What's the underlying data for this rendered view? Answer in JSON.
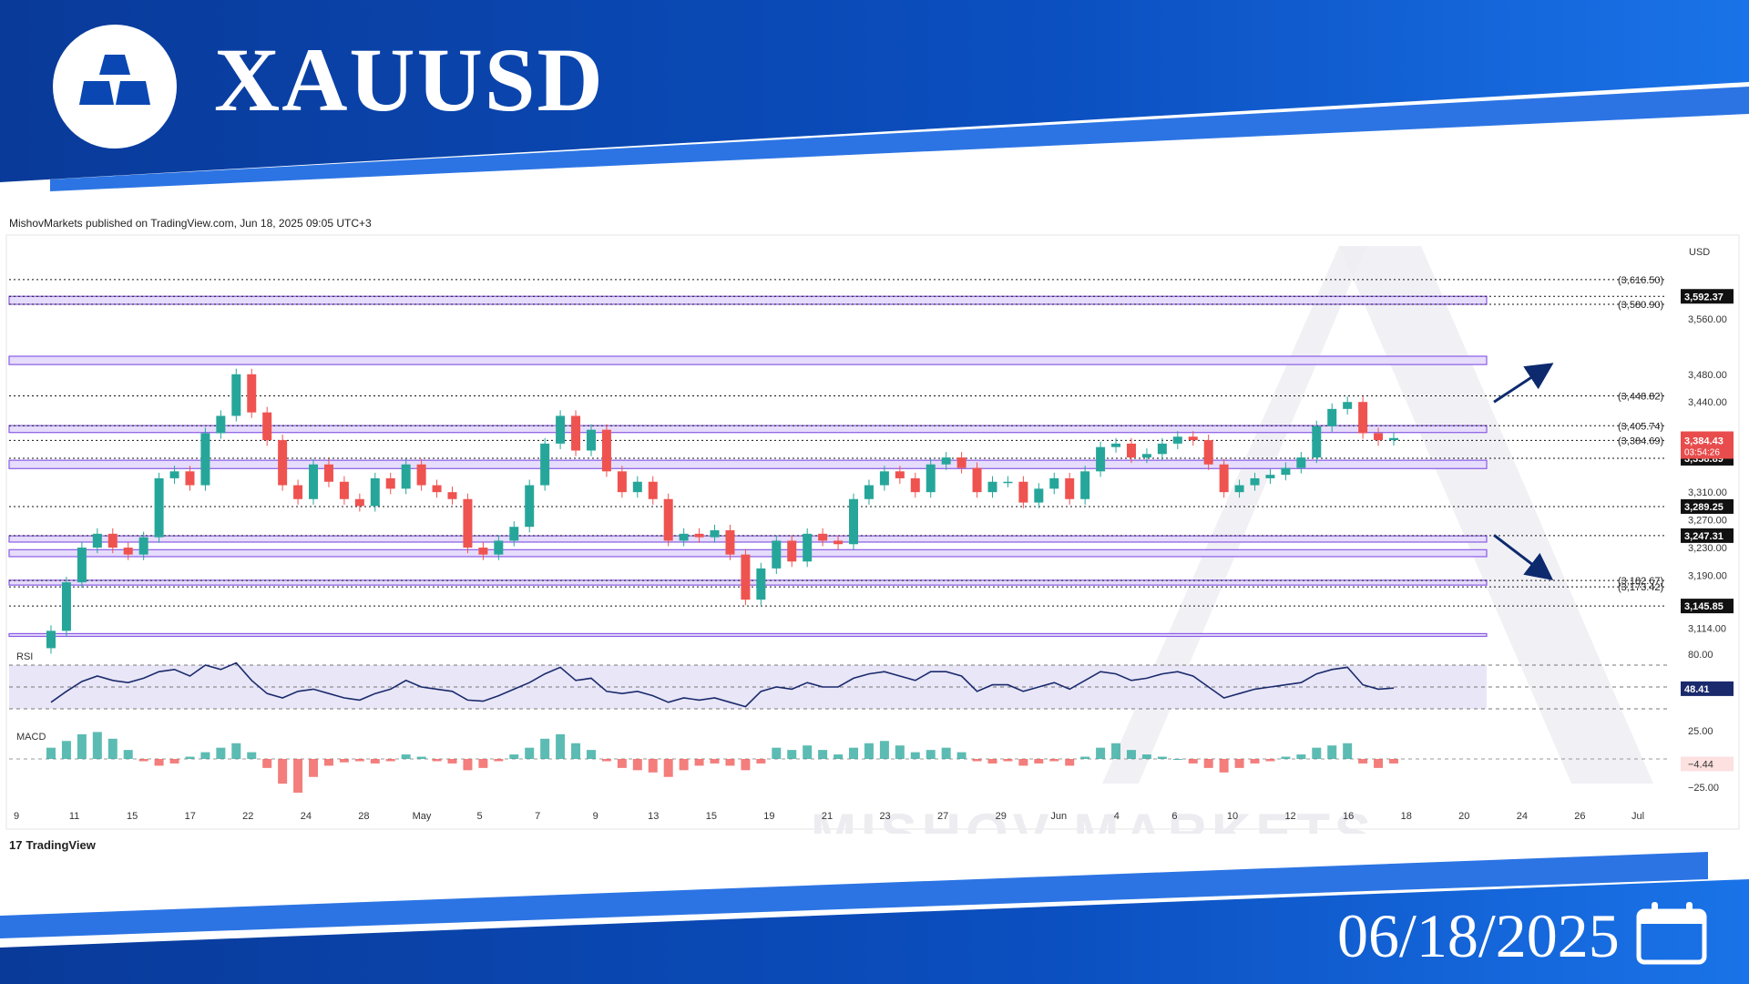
{
  "header": {
    "title": "XAUUSD",
    "published": "MishovMarkets published on TradingView.com, Jun 18, 2025 09:05 UTC+3",
    "brand_color": "#0a47b3"
  },
  "footer": {
    "date": "06/18/2025",
    "tradingview_label": "TradingView",
    "watermark": "MISHOV MARKETS"
  },
  "chart_data": {
    "type": "candlestick",
    "symbol": "XAUUSD",
    "currency_label": "USD",
    "ylim": [
      3100,
      3640
    ],
    "y_ticks": [
      3114.0,
      3190.0,
      3230.0,
      3270.0,
      3310.0,
      3440.0,
      3480.0,
      3560.0
    ],
    "x_ticks": [
      "9",
      "11",
      "15",
      "17",
      "22",
      "24",
      "28",
      "May",
      "5",
      "7",
      "9",
      "13",
      "15",
      "19",
      "21",
      "23",
      "27",
      "29",
      "Jun",
      "4",
      "6",
      "10",
      "12",
      "16",
      "18",
      "20",
      "24",
      "26",
      "Jul"
    ],
    "dotted_levels": [
      {
        "value": 3616.5,
        "label": "(3,616.50)"
      },
      {
        "value": 3592.37,
        "label": "3,592.37"
      },
      {
        "value": 3580.9,
        "label": "(3,580.90)"
      },
      {
        "value": 3448.82,
        "label": "(3,448.82)"
      },
      {
        "value": 3405.74,
        "label": "(3,405.74)"
      },
      {
        "value": 3384.69,
        "label": "(3,384.69)"
      },
      {
        "value": 3358.89,
        "label": "3,358.89"
      },
      {
        "value": 3289.25,
        "label": "3,289.25"
      },
      {
        "value": 3247.31,
        "label": "3,247.31"
      },
      {
        "value": 3182.67,
        "label": "(3,182.67)"
      },
      {
        "value": 3173.42,
        "label": "(3,173.42)"
      },
      {
        "value": 3145.85,
        "label": "3,145.85"
      }
    ],
    "zones": [
      {
        "low": 3580.9,
        "high": 3592.4
      },
      {
        "low": 3494,
        "high": 3506
      },
      {
        "low": 3396,
        "high": 3406
      },
      {
        "low": 3344,
        "high": 3356
      },
      {
        "low": 3238,
        "high": 3247
      },
      {
        "low": 3217,
        "high": 3227
      },
      {
        "low": 3176,
        "high": 3183
      },
      {
        "low": 3102,
        "high": 3106
      }
    ],
    "current_price": {
      "value": 3384.43,
      "label": "3,384.43",
      "countdown": "03:54:26",
      "color": "#e84c4c"
    },
    "arrows": [
      {
        "direction": "up",
        "from": [
          3340,
          3440
        ],
        "to": [
          3385,
          3490
        ]
      },
      {
        "direction": "down",
        "from": [
          3340,
          3248
        ],
        "to": [
          3385,
          3190
        ]
      }
    ],
    "closes": [
      3110,
      3180,
      3230,
      3250,
      3230,
      3220,
      3245,
      3330,
      3340,
      3320,
      3395,
      3420,
      3480,
      3425,
      3385,
      3320,
      3300,
      3350,
      3325,
      3300,
      3290,
      3330,
      3315,
      3350,
      3320,
      3310,
      3300,
      3230,
      3220,
      3240,
      3260,
      3320,
      3380,
      3420,
      3370,
      3400,
      3340,
      3310,
      3325,
      3300,
      3240,
      3250,
      3245,
      3255,
      3220,
      3155,
      3200,
      3240,
      3210,
      3250,
      3240,
      3235,
      3300,
      3320,
      3340,
      3330,
      3310,
      3350,
      3360,
      3345,
      3310,
      3325,
      3325,
      3295,
      3315,
      3330,
      3300,
      3340,
      3375,
      3380,
      3360,
      3365,
      3380,
      3390,
      3385,
      3350,
      3310,
      3320,
      3330,
      3335,
      3345,
      3360,
      3405,
      3430,
      3440,
      3395,
      3385,
      3388
    ],
    "rsi": {
      "label": "RSI",
      "current": 48.41,
      "current_label": "48.41",
      "ticks": [
        {
          "value": 80,
          "label": "80.00"
        }
      ],
      "bands": [
        70,
        50,
        30
      ],
      "values": [
        36,
        46,
        55,
        60,
        56,
        54,
        58,
        64,
        66,
        60,
        70,
        66,
        72,
        56,
        44,
        40,
        46,
        48,
        44,
        40,
        38,
        44,
        48,
        56,
        50,
        48,
        46,
        38,
        37,
        42,
        48,
        54,
        62,
        68,
        56,
        58,
        46,
        44,
        46,
        42,
        36,
        40,
        38,
        40,
        36,
        32,
        46,
        50,
        48,
        54,
        50,
        50,
        58,
        62,
        64,
        60,
        56,
        64,
        64,
        60,
        46,
        52,
        52,
        46,
        50,
        54,
        48,
        56,
        64,
        62,
        56,
        58,
        62,
        64,
        60,
        50,
        40,
        44,
        48,
        50,
        52,
        54,
        62,
        66,
        68,
        52,
        48,
        49
      ]
    },
    "macd": {
      "label": "MACD",
      "current": -4.44,
      "current_label": "−4.44",
      "ticks": [
        {
          "value": 25,
          "label": "25.00"
        },
        {
          "value": -25,
          "label": "−25.00"
        }
      ],
      "values": [
        10,
        16,
        22,
        24,
        18,
        8,
        -2,
        -6,
        -4,
        2,
        6,
        10,
        14,
        6,
        -8,
        -22,
        -30,
        -16,
        -6,
        -3,
        -2,
        -4,
        -2,
        4,
        2,
        -2,
        -4,
        -10,
        -8,
        -2,
        4,
        10,
        18,
        22,
        14,
        8,
        -2,
        -8,
        -10,
        -12,
        -16,
        -10,
        -6,
        -4,
        -6,
        -10,
        -4,
        10,
        8,
        12,
        8,
        4,
        10,
        14,
        16,
        12,
        6,
        8,
        10,
        6,
        -2,
        -4,
        -2,
        -6,
        -4,
        -2,
        -6,
        2,
        10,
        14,
        8,
        4,
        2,
        0,
        -4,
        -8,
        -12,
        -8,
        -4,
        -2,
        2,
        4,
        10,
        12,
        14,
        -4,
        -8,
        -4
      ]
    }
  }
}
